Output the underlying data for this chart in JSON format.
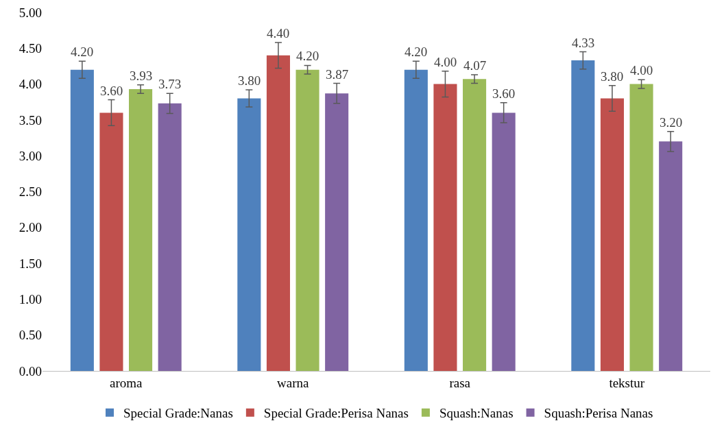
{
  "chart_data": {
    "type": "bar",
    "categories": [
      "aroma",
      "warna",
      "rasa",
      "tekstur"
    ],
    "series": [
      {
        "name": "Special Grade:Nanas",
        "color": "#4f81bd",
        "values": [
          4.2,
          3.8,
          4.2,
          4.33
        ],
        "errors": [
          0.12,
          0.12,
          0.12,
          0.12
        ],
        "value_labels": [
          "4.20",
          "3.80",
          "4.20",
          "4.33"
        ]
      },
      {
        "name": "Special Grade:Perisa Nanas",
        "color": "#c0504d",
        "values": [
          3.6,
          4.4,
          4.0,
          3.8
        ],
        "errors": [
          0.18,
          0.18,
          0.18,
          0.18
        ],
        "value_labels": [
          "3.60",
          "4.40",
          "4.00",
          "3.80"
        ]
      },
      {
        "name": "Squash:Nanas",
        "color": "#9bbb59",
        "values": [
          3.93,
          4.2,
          4.07,
          4.0
        ],
        "errors": [
          0.06,
          0.06,
          0.06,
          0.06
        ],
        "value_labels": [
          "3.93",
          "4.20",
          "4.07",
          "4.00"
        ]
      },
      {
        "name": "Squash:Perisa Nanas",
        "color": "#8064a2",
        "values": [
          3.73,
          3.87,
          3.6,
          3.2
        ],
        "errors": [
          0.14,
          0.14,
          0.14,
          0.14
        ],
        "value_labels": [
          "3.73",
          "3.87",
          "3.60",
          "3.20"
        ]
      }
    ],
    "ylim": [
      0,
      5
    ],
    "yticks": [
      {
        "value": 0,
        "label": "0.00"
      },
      {
        "value": 0.5,
        "label": "0.50"
      },
      {
        "value": 1,
        "label": "1.00"
      },
      {
        "value": 1.5,
        "label": "1.50"
      },
      {
        "value": 2,
        "label": "2.00"
      },
      {
        "value": 2.5,
        "label": "2.50"
      },
      {
        "value": 3,
        "label": "3.00"
      },
      {
        "value": 3.5,
        "label": "3.50"
      },
      {
        "value": 4,
        "label": "4.00"
      },
      {
        "value": 4.5,
        "label": "4.50"
      },
      {
        "value": 5,
        "label": "5.00"
      }
    ],
    "grid": false,
    "legend": "bottom"
  }
}
